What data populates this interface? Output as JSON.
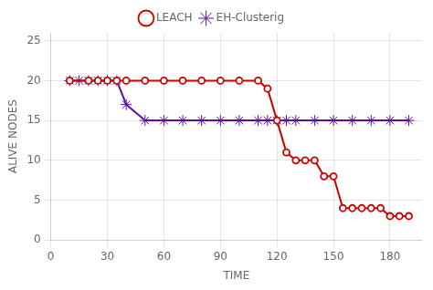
{
  "chart_data": {
    "type": "line",
    "xlabel": "TIME",
    "ylabel": "ALIVE NODES",
    "series": [
      {
        "name": "LEACH",
        "color": "#cc0000",
        "marker": "circle",
        "x": [
          10,
          20,
          25,
          30,
          35,
          40,
          50,
          60,
          70,
          80,
          90,
          100,
          110,
          115,
          120,
          125,
          130,
          135,
          140,
          145,
          150,
          155,
          160,
          165,
          170,
          175,
          180,
          185,
          190
        ],
        "values": [
          20,
          20,
          20,
          20,
          20,
          20,
          20,
          20,
          20,
          20,
          20,
          20,
          20,
          19,
          15,
          11,
          10,
          10,
          10,
          8,
          8,
          4,
          4,
          4,
          4,
          4,
          3,
          3,
          3
        ]
      },
      {
        "name": "EH-Clusterig",
        "color": "#5b0ea6",
        "marker": "star",
        "x": [
          10,
          15,
          20,
          25,
          30,
          35,
          40,
          50,
          60,
          70,
          80,
          90,
          100,
          110,
          115,
          120,
          125,
          130,
          140,
          150,
          160,
          170,
          180,
          190
        ],
        "values": [
          20,
          20,
          20,
          20,
          20,
          20,
          17,
          15,
          15,
          15,
          15,
          15,
          15,
          15,
          15,
          15,
          15,
          15,
          15,
          15,
          15,
          15,
          15,
          15
        ]
      }
    ],
    "xlim": [
      0,
      197
    ],
    "ylim": [
      0,
      26
    ],
    "xticks": [
      0,
      30,
      60,
      90,
      120,
      150,
      180
    ],
    "yticks": [
      0,
      5,
      10,
      15,
      20,
      25
    ],
    "grid": true,
    "legend": "top"
  }
}
